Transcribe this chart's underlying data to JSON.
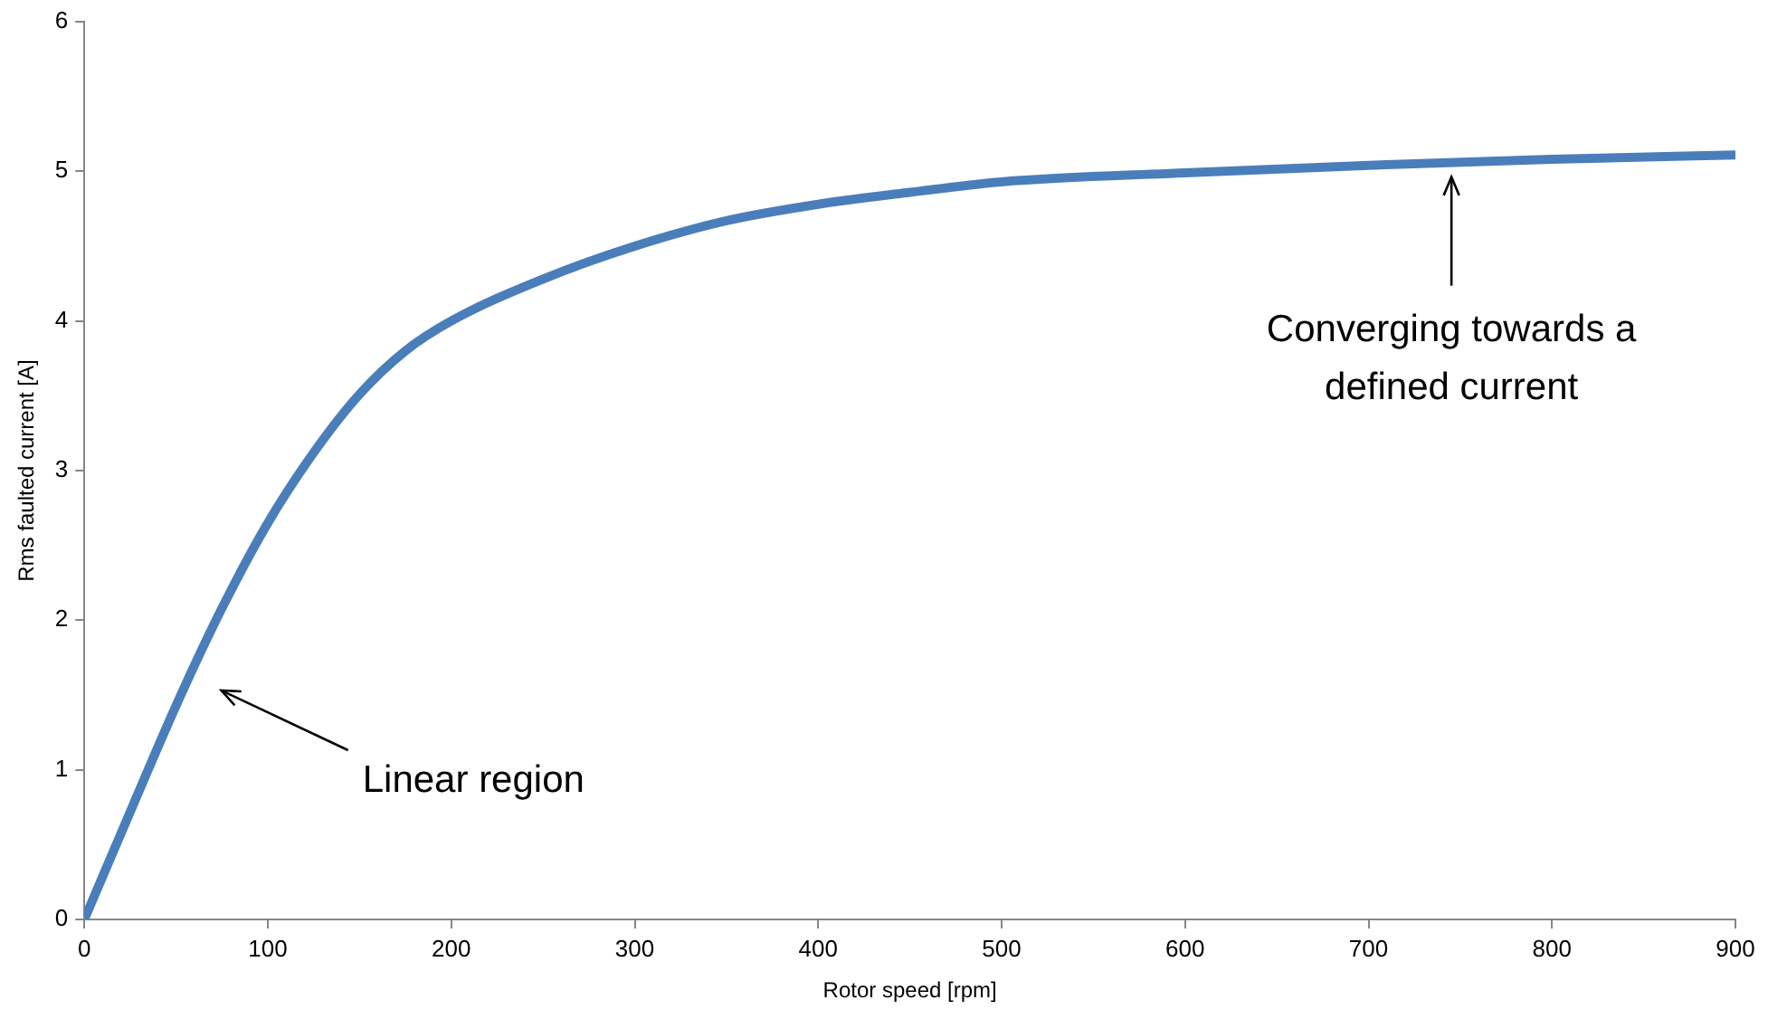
{
  "chart_data": {
    "type": "line",
    "xlabel": "Rotor speed [rpm]",
    "ylabel": "Rms faulted current [A]",
    "x": [
      0,
      25,
      50,
      75,
      100,
      125,
      150,
      175,
      200,
      250,
      300,
      350,
      400,
      450,
      500,
      600,
      700,
      800,
      900
    ],
    "series": [
      {
        "color": "#4a7ebb",
        "values": [
          0,
          0.72,
          1.43,
          2.08,
          2.65,
          3.12,
          3.51,
          3.8,
          4.0,
          4.28,
          4.5,
          4.67,
          4.78,
          4.86,
          4.93,
          4.99,
          5.04,
          5.08,
          5.11
        ]
      }
    ],
    "xlim": [
      0,
      900
    ],
    "xticks": [
      0,
      100,
      200,
      300,
      400,
      500,
      600,
      700,
      800,
      900
    ],
    "ylim": [
      0,
      6
    ],
    "yticks": [
      0,
      1,
      2,
      3,
      4,
      5,
      6
    ],
    "grid": false,
    "legend": false,
    "marker": "none",
    "line_style": "solid",
    "annotations": [
      "Linear region",
      "Converging towards a\ndefined current"
    ]
  }
}
